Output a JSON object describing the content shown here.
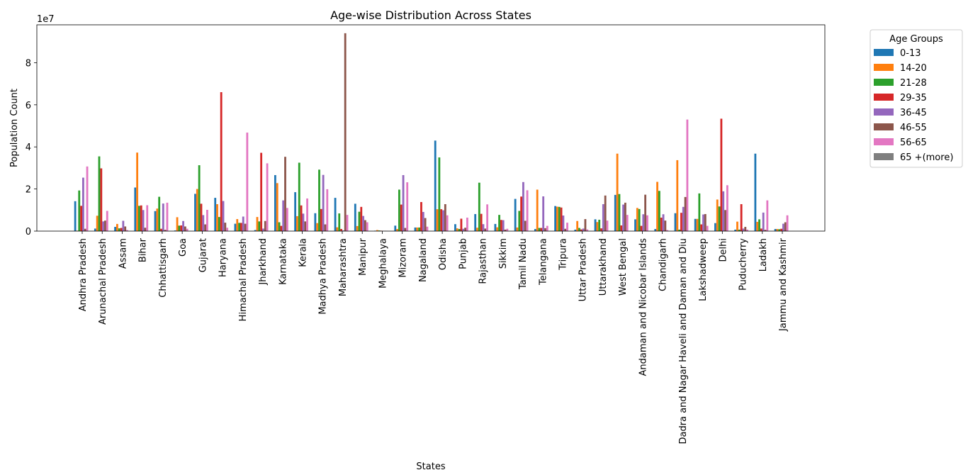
{
  "chart_data": {
    "type": "bar",
    "title": "Age-wise Distribution Across States",
    "xlabel": "States",
    "ylabel": "Population Count",
    "y_offset_text": "1e7",
    "ylim": [
      0,
      98000000
    ],
    "y_ticks": [
      0,
      20000000,
      40000000,
      60000000,
      80000000
    ],
    "y_tick_labels": [
      "0",
      "2",
      "4",
      "6",
      "8"
    ],
    "legend_title": "Age Groups",
    "legend_position": "outside-right",
    "categories": [
      "Andhra Pradesh",
      "Arunachal Pradesh",
      "Assam",
      "Bihar",
      "Chhattisgarh",
      "Goa",
      "Gujarat",
      "Haryana",
      "Himachal Pradesh",
      "Jharkhand",
      "Karnataka",
      "Kerala",
      "Madhya Pradesh",
      "Maharashtra",
      "Manipur",
      "Meghalaya",
      "Mizoram",
      "Nagaland",
      "Odisha",
      "Punjab",
      "Rajasthan",
      "Sikkim",
      "Tamil Nadu",
      "Telangana",
      "Tripura",
      "Uttar Pradesh",
      "Uttarakhand",
      "West Bengal",
      "Andaman and Nicobar Islands",
      "Chandigarh",
      "Dadra and Nagar Haveli and Daman and Diu",
      "Lakshadweep",
      "Delhi",
      "Puducherry",
      "Ladakh",
      "Jammu and Kashmir"
    ],
    "series": [
      {
        "name": "0-13",
        "color": "#1f77b4",
        "values": [
          14200000,
          1200000,
          2000000,
          20700000,
          9500000,
          300000,
          17700000,
          15800000,
          3500000,
          500000,
          26600000,
          18500000,
          8500000,
          15800000,
          13000000,
          200000,
          2600000,
          1700000,
          43000000,
          3300000,
          8100000,
          3400000,
          15300000,
          1000000,
          11900000,
          700000,
          5600000,
          17200000,
          5600000,
          1000000,
          8500000,
          5800000,
          3800000,
          700000,
          36800000,
          1000000
        ]
      },
      {
        "name": "14-20",
        "color": "#ff7f0e",
        "values": [
          200000,
          7300000,
          3400000,
          37300000,
          10700000,
          6600000,
          20000000,
          12800000,
          5700000,
          6700000,
          22800000,
          7100000,
          3800000,
          1800000,
          2400000,
          500000,
          1000000,
          1700000,
          10400000,
          1300000,
          1600000,
          1800000,
          1700000,
          19700000,
          11600000,
          4800000,
          4300000,
          36800000,
          11000000,
          23400000,
          33700000,
          5800000,
          15000000,
          4500000,
          4400000,
          1000000
        ]
      },
      {
        "name": "21-28",
        "color": "#2ca02c",
        "values": [
          19300000,
          35500000,
          1300000,
          12000000,
          16300000,
          2600000,
          31300000,
          6700000,
          3900000,
          4600000,
          4200000,
          32500000,
          29200000,
          8400000,
          9200000,
          300000,
          19700000,
          1700000,
          35000000,
          1000000,
          23000000,
          7700000,
          9600000,
          1500000,
          11500000,
          1500000,
          5400000,
          17600000,
          10500000,
          19100000,
          700000,
          17900000,
          11700000,
          700000,
          5600000,
          900000
        ]
      },
      {
        "name": "29-35",
        "color": "#d62728",
        "values": [
          12000000,
          29800000,
          1500000,
          12200000,
          1100000,
          2700000,
          13000000,
          66000000,
          3900000,
          37200000,
          2500000,
          12200000,
          10500000,
          1000000,
          11500000,
          200000,
          12600000,
          13800000,
          10400000,
          5900000,
          8200000,
          5300000,
          16400000,
          1500000,
          11200000,
          800000,
          1300000,
          2700000,
          2500000,
          6400000,
          8700000,
          3200000,
          53400000,
          12800000,
          1200000,
          1100000
        ]
      },
      {
        "name": "36-45",
        "color": "#9467bd",
        "values": [
          25400000,
          4600000,
          4900000,
          10000000,
          13100000,
          4800000,
          7600000,
          14300000,
          6900000,
          1200000,
          14600000,
          8300000,
          26700000,
          300000,
          7200000,
          100000,
          26600000,
          9100000,
          9900000,
          1100000,
          3300000,
          5200000,
          23300000,
          16500000,
          7400000,
          1200000,
          12800000,
          12600000,
          8000000,
          8000000,
          11500000,
          7900000,
          18900000,
          1200000,
          8800000,
          3500000
        ]
      },
      {
        "name": "46-55",
        "color": "#8c564b",
        "values": [
          1100000,
          5000000,
          2200000,
          1600000,
          600000,
          2200000,
          3200000,
          4000000,
          3500000,
          4800000,
          35300000,
          4600000,
          3200000,
          94000000,
          5200000,
          100000,
          1500000,
          6200000,
          12800000,
          1600000,
          1200000,
          700000,
          4900000,
          1400000,
          1100000,
          5700000,
          16900000,
          13500000,
          17300000,
          5000000,
          16200000,
          8100000,
          10000000,
          2000000,
          600000,
          4200000
        ]
      },
      {
        "name": "56-65",
        "color": "#e377c2",
        "values": [
          30700000,
          9600000,
          500000,
          12300000,
          13500000,
          1100000,
          10100000,
          1600000,
          46800000,
          32200000,
          11000000,
          15500000,
          19900000,
          7700000,
          4200000,
          100000,
          23200000,
          2100000,
          7500000,
          6400000,
          12700000,
          1100000,
          19400000,
          2500000,
          4000000,
          800000,
          5000000,
          7700000,
          7500000,
          500000,
          53000000,
          2500000,
          21800000,
          700000,
          14600000,
          7500000
        ]
      },
      {
        "name": "65 +(more)",
        "color": "#7f7f7f",
        "values": [
          0,
          0,
          0,
          0,
          0,
          0,
          0,
          0,
          0,
          0,
          0,
          0,
          0,
          0,
          0,
          0,
          0,
          0,
          0,
          0,
          0,
          0,
          0,
          0,
          0,
          0,
          0,
          0,
          0,
          0,
          0,
          0,
          0,
          0,
          0,
          0
        ]
      }
    ]
  }
}
